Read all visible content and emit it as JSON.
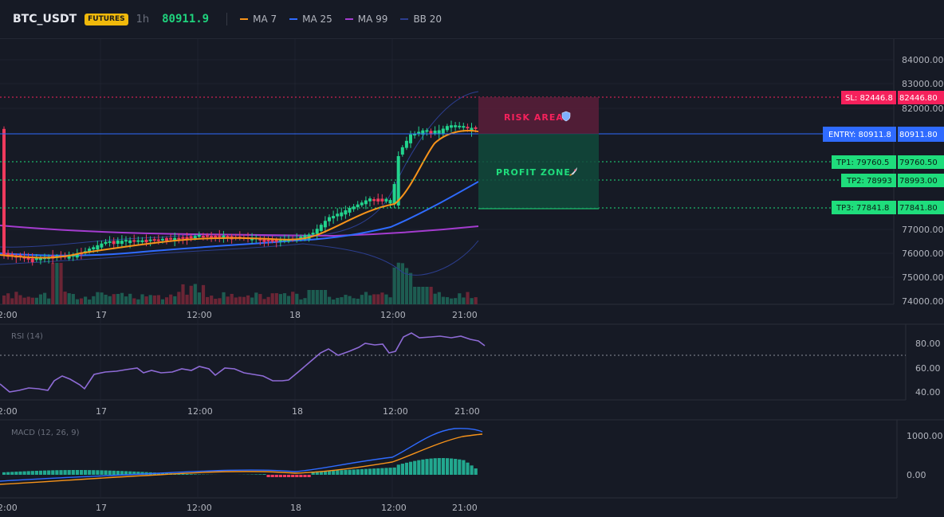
{
  "header": {
    "symbol": "BTC_USDT",
    "badge": "FUTURES",
    "timeframe": "1h",
    "price": "80911.9",
    "indicators": [
      {
        "label": "MA 7",
        "color": "#f7931a"
      },
      {
        "label": "MA 25",
        "color": "#2f6bff"
      },
      {
        "label": "MA 99",
        "color": "#a43ccf"
      },
      {
        "label": "BB 20",
        "color": "#2c3e8f"
      }
    ]
  },
  "colors": {
    "up": "#22d38d",
    "down": "#ef3a5d",
    "entry": "#2f6bff",
    "sl": "#f5215c",
    "tp": "#1fdd7c",
    "rsi": "#8e6bd6",
    "macd_line": "#2f6bff",
    "signal_line": "#f7931a"
  },
  "price_axis": {
    "ticks": [
      "84000.00",
      "83000.00",
      "82000.00",
      "77000.00",
      "76000.00",
      "75000.00",
      "74000.00"
    ]
  },
  "time_axis": {
    "ticks": [
      "2:00",
      "17",
      "12:00",
      "18",
      "12:00",
      "21:00"
    ]
  },
  "levels": {
    "sl": {
      "label": "SL: 82446.8",
      "value": "82446.80"
    },
    "entry": {
      "label": "ENTRY: 80911.8",
      "value": "80911.80"
    },
    "tp1": {
      "label": "TP1: 79760.5",
      "value": "79760.50"
    },
    "tp2": {
      "label": "TP2: 78993",
      "value": "78993.00"
    },
    "tp3": {
      "label": "TP3: 77841.8",
      "value": "77841.80"
    }
  },
  "zones": {
    "risk": {
      "label": "RISK AREA",
      "icon": "shield-icon"
    },
    "profit": {
      "label": "PROFIT ZONE",
      "icon": "rocket-icon"
    }
  },
  "rsi": {
    "label": "RSI (14)",
    "ticks": [
      "80.00",
      "60.00",
      "40.00"
    ]
  },
  "macd": {
    "label": "MACD (12, 26, 9)",
    "ticks": [
      "1000.00",
      "0.00"
    ]
  }
}
